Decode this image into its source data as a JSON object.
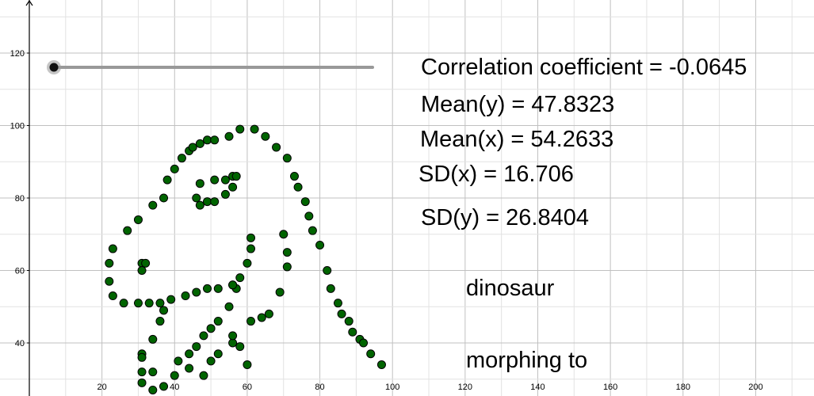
{
  "slider": {
    "value": 0
  },
  "stats": {
    "correlation": "Correlation coefficient = -0.0645",
    "mean_y": "Mean(y) = 47.8323",
    "mean_x": "Mean(x) = 54.2633",
    "sd_x": "SD(x) = 16.706",
    "sd_y": "SD(y) = 26.8404"
  },
  "labels": {
    "shape_name": "dinosaur",
    "morphing": "morphing to"
  },
  "colors": {
    "point": "#006400",
    "grid": "#c0c0c0",
    "slider_track": "#999999"
  },
  "chart_data": {
    "type": "scatter",
    "title": "",
    "xlabel": "",
    "ylabel": "",
    "xlim": [
      0,
      220
    ],
    "ylim": [
      25,
      133
    ],
    "grid": true,
    "x_ticks": [
      20,
      40,
      60,
      80,
      100,
      120,
      140,
      160,
      180,
      200
    ],
    "y_ticks": [
      40,
      60,
      80,
      100,
      120
    ],
    "points": [
      [
        22,
        62
      ],
      [
        23,
        66
      ],
      [
        22,
        57
      ],
      [
        23,
        53
      ],
      [
        27,
        71
      ],
      [
        30,
        74
      ],
      [
        34,
        78
      ],
      [
        37,
        80
      ],
      [
        38,
        85
      ],
      [
        40,
        88
      ],
      [
        42,
        91
      ],
      [
        44,
        93
      ],
      [
        45,
        94
      ],
      [
        47,
        95
      ],
      [
        49,
        96
      ],
      [
        51,
        96
      ],
      [
        55,
        97
      ],
      [
        58,
        99
      ],
      [
        62,
        99
      ],
      [
        65,
        97
      ],
      [
        68,
        94
      ],
      [
        71,
        91
      ],
      [
        73,
        86
      ],
      [
        74,
        83
      ],
      [
        76,
        79
      ],
      [
        77,
        75
      ],
      [
        78,
        71
      ],
      [
        80,
        67
      ],
      [
        82,
        60
      ],
      [
        83,
        55
      ],
      [
        85,
        51
      ],
      [
        86,
        48
      ],
      [
        88,
        46
      ],
      [
        89,
        43
      ],
      [
        91,
        41
      ],
      [
        92,
        40
      ],
      [
        94,
        37
      ],
      [
        97,
        34
      ],
      [
        26,
        51
      ],
      [
        30,
        51
      ],
      [
        33,
        51
      ],
      [
        36,
        51
      ],
      [
        39,
        52
      ],
      [
        43,
        53
      ],
      [
        46,
        54
      ],
      [
        49,
        55
      ],
      [
        52,
        55
      ],
      [
        56,
        56
      ],
      [
        58,
        58
      ],
      [
        60,
        62
      ],
      [
        61,
        66
      ],
      [
        61,
        69
      ],
      [
        57,
        55
      ],
      [
        56,
        56
      ],
      [
        31,
        62
      ],
      [
        32,
        62
      ],
      [
        31,
        60
      ],
      [
        46,
        80
      ],
      [
        47,
        78
      ],
      [
        49,
        79
      ],
      [
        51,
        79
      ],
      [
        51,
        85
      ],
      [
        54,
        85
      ],
      [
        56,
        86
      ],
      [
        57,
        86
      ],
      [
        54,
        81
      ],
      [
        56,
        83
      ],
      [
        47,
        84
      ],
      [
        37,
        49
      ],
      [
        36,
        46
      ],
      [
        34,
        41
      ],
      [
        41,
        35
      ],
      [
        44,
        37
      ],
      [
        46,
        39
      ],
      [
        48,
        42
      ],
      [
        50,
        44
      ],
      [
        52,
        46
      ],
      [
        55,
        50
      ],
      [
        56,
        40
      ],
      [
        56,
        42
      ],
      [
        61,
        46
      ],
      [
        64,
        47
      ],
      [
        66,
        48
      ],
      [
        69,
        54
      ],
      [
        71,
        61
      ],
      [
        71,
        65
      ],
      [
        70,
        70
      ],
      [
        31,
        37
      ],
      [
        31,
        36
      ],
      [
        31,
        32
      ],
      [
        34,
        32
      ],
      [
        31,
        29
      ],
      [
        34,
        27
      ],
      [
        37,
        28
      ],
      [
        40,
        31
      ],
      [
        44,
        33
      ],
      [
        48,
        31
      ],
      [
        50,
        35
      ],
      [
        52,
        37
      ],
      [
        58,
        39
      ],
      [
        60,
        34
      ]
    ]
  }
}
